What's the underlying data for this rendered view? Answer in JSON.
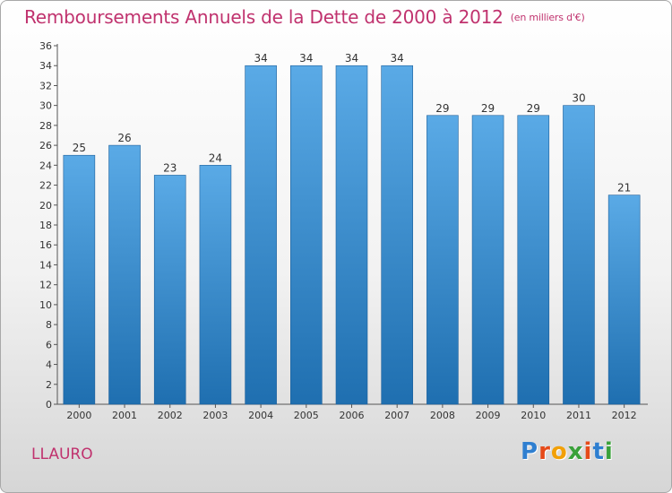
{
  "header": {
    "title": "Remboursements Annuels de la Dette de 2000 à 2012",
    "unit": "(en milliers d'€)"
  },
  "footer": {
    "commune": "LLAURO",
    "logo_letters": [
      "P",
      "r",
      "o",
      "x",
      "i",
      "t",
      "i"
    ],
    "logo_colors": [
      "#2f7fd0",
      "#e64a19",
      "#f2a007",
      "#3aa13a",
      "#e64a19",
      "#2f7fd0",
      "#3aa13a"
    ]
  },
  "colors": {
    "bar_light": "#5aaae6",
    "bar_dark": "#1f6fb0",
    "title": "#c0326e"
  },
  "chart_data": {
    "type": "bar",
    "title": "Remboursements Annuels de la Dette de 2000 à 2012",
    "categories": [
      "2000",
      "2001",
      "2002",
      "2003",
      "2004",
      "2005",
      "2006",
      "2007",
      "2008",
      "2009",
      "2010",
      "2011",
      "2012"
    ],
    "values": [
      25,
      26,
      23,
      24,
      34,
      34,
      34,
      34,
      29,
      29,
      29,
      30,
      21
    ],
    "ylim": [
      0,
      36
    ],
    "yticks": [
      0,
      2,
      4,
      6,
      8,
      10,
      12,
      14,
      16,
      18,
      20,
      22,
      24,
      26,
      28,
      30,
      32,
      34,
      36
    ],
    "grid": false,
    "xlabel": "",
    "ylabel": ""
  }
}
